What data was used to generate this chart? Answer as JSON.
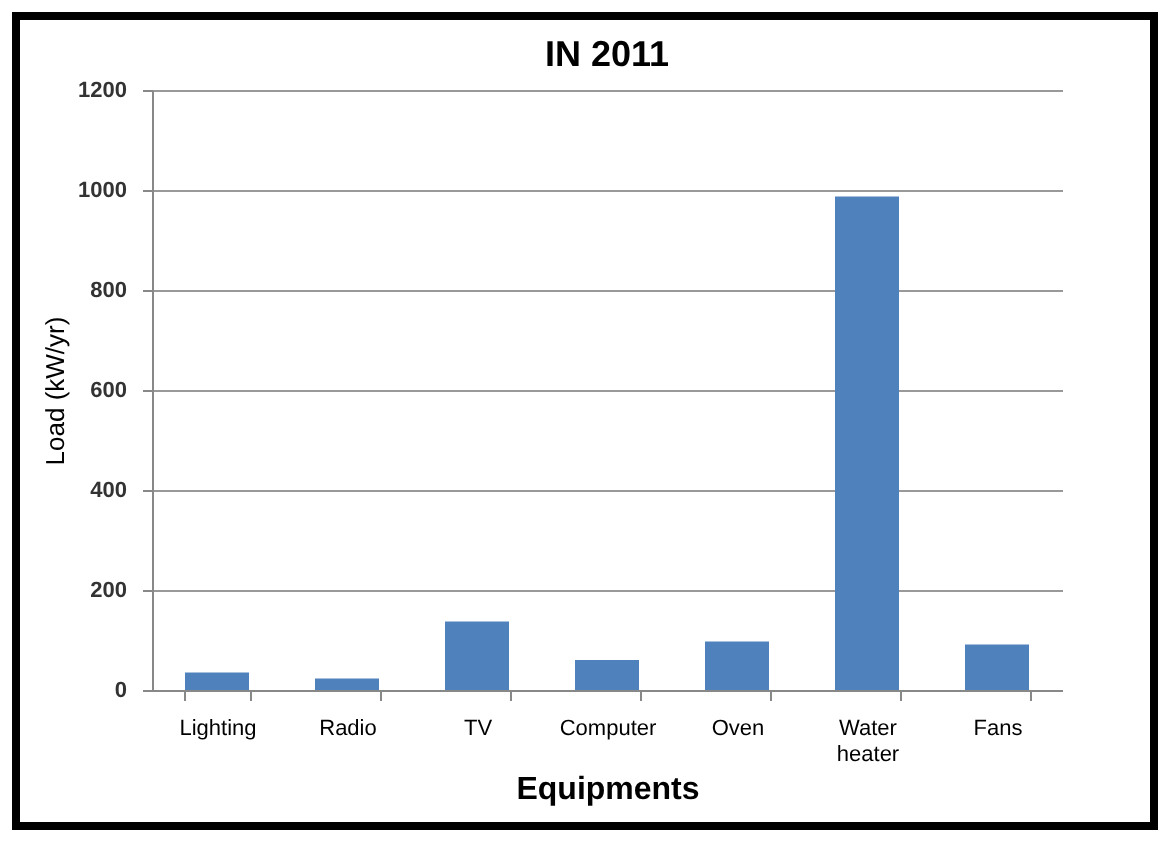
{
  "chart_data": {
    "type": "bar",
    "title": "IN 2011",
    "xlabel": "Equipments",
    "ylabel": "Load (kW/yr)",
    "categories": [
      "Lighting",
      "Radio",
      "TV",
      "Computer",
      "Oven",
      "Water heater",
      "Fans"
    ],
    "values": [
      35,
      23,
      137,
      60,
      97,
      987,
      91
    ],
    "color": "#4f81bd",
    "ylim": [
      0,
      1200
    ],
    "yticks": [
      0,
      200,
      400,
      600,
      800,
      1000,
      1200
    ],
    "grid": "y"
  }
}
